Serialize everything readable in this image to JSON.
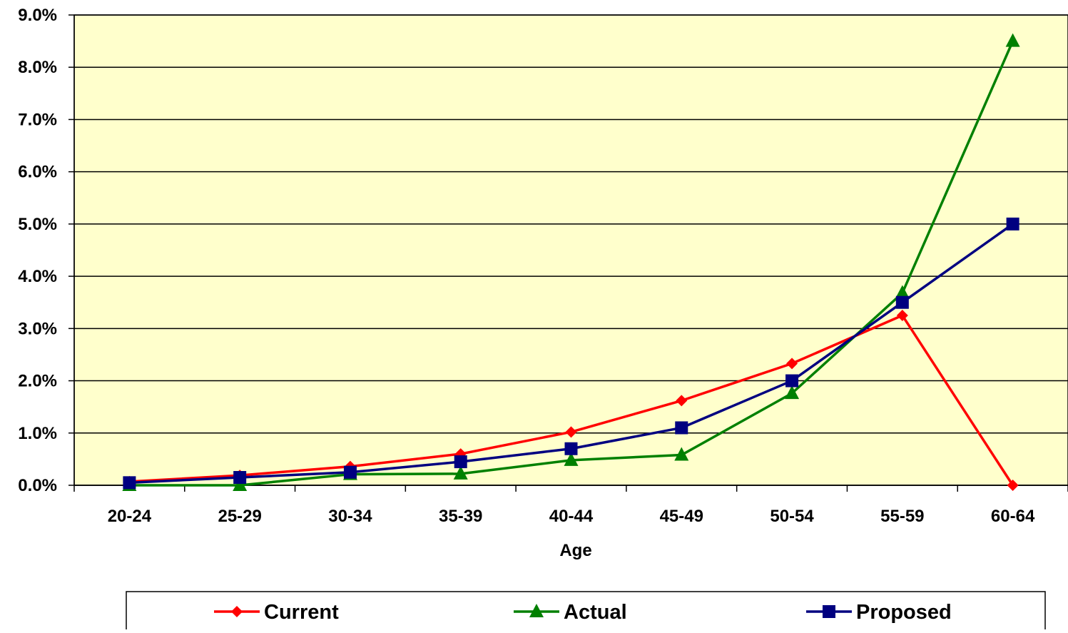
{
  "chart_data": {
    "type": "line",
    "title": "",
    "xlabel": "Age",
    "ylabel": "",
    "categories": [
      "20-24",
      "25-29",
      "30-34",
      "35-39",
      "40-44",
      "45-49",
      "50-54",
      "55-59",
      "60-64"
    ],
    "ylim": [
      0,
      0.09
    ],
    "y_ticks": [
      0,
      0.01,
      0.02,
      0.03,
      0.04,
      0.05,
      0.06,
      0.07,
      0.08,
      0.09
    ],
    "y_tick_labels": [
      "0.0%",
      "1.0%",
      "2.0%",
      "3.0%",
      "4.0%",
      "5.0%",
      "6.0%",
      "7.0%",
      "8.0%",
      "9.0%"
    ],
    "grid": true,
    "legend_position": "bottom",
    "plot_background": "#FFFFCC",
    "series": [
      {
        "name": "Current",
        "color": "#FF0000",
        "marker": "diamond",
        "values": [
          0.0007,
          0.0019,
          0.0036,
          0.006,
          0.0102,
          0.0162,
          0.0233,
          0.0325,
          0.0
        ]
      },
      {
        "name": "Actual",
        "color": "#008000",
        "marker": "triangle",
        "values": [
          0.0,
          0.0,
          0.0021,
          0.0022,
          0.0048,
          0.0058,
          0.0176,
          0.0368,
          0.085
        ]
      },
      {
        "name": "Proposed",
        "color": "#000080",
        "marker": "square",
        "values": [
          0.0005,
          0.0015,
          0.0025,
          0.0045,
          0.007,
          0.011,
          0.02,
          0.035,
          0.05
        ]
      }
    ]
  }
}
